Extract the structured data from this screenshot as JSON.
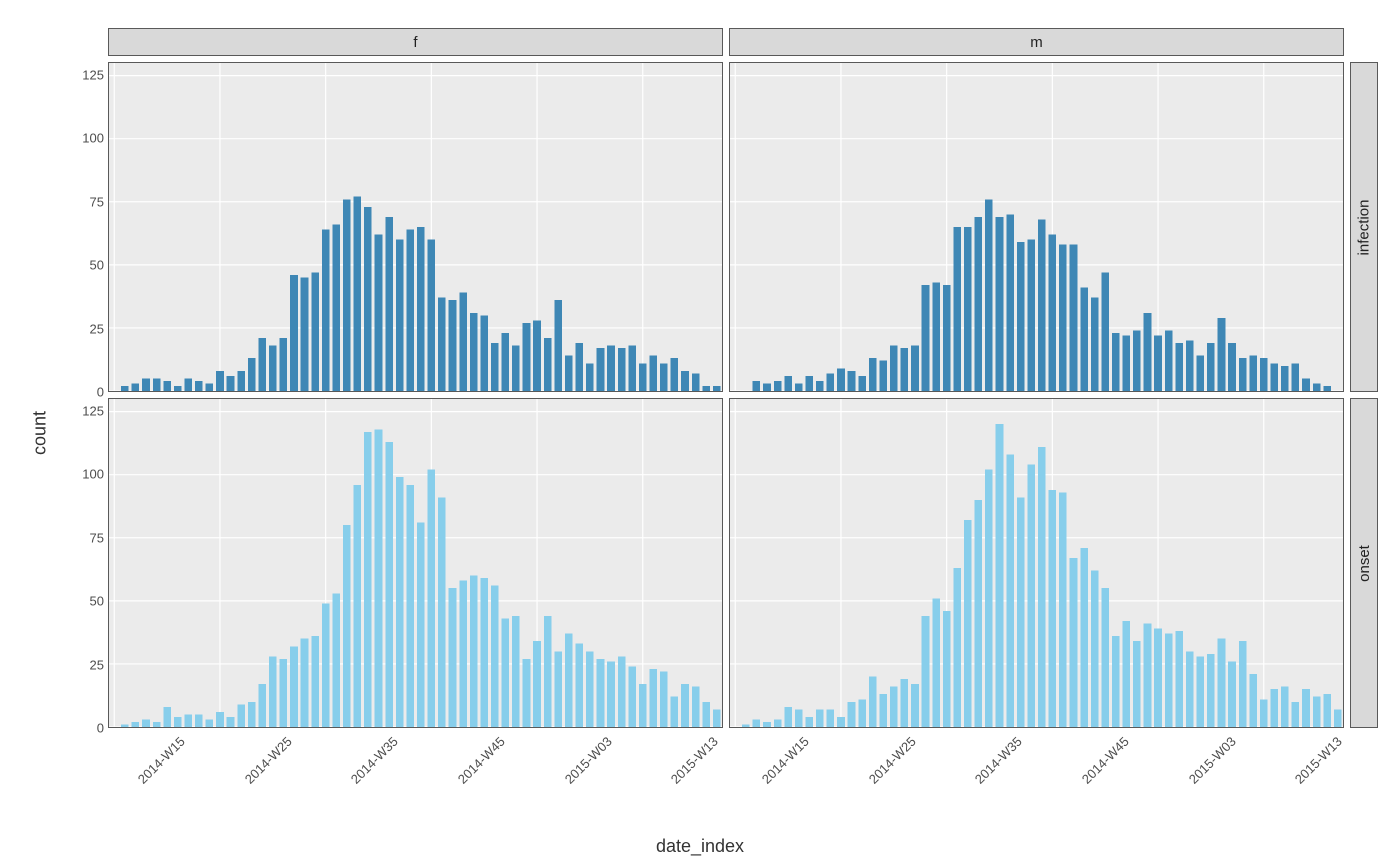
{
  "chart": {
    "type": "faceted-bar-histogram",
    "x_label": "date_index",
    "y_label": "count",
    "background_color": "#ffffff",
    "panel_background": "#ebebeb",
    "grid_color": "#ffffff",
    "strip_background": "#d9d9d9",
    "strip_border": "#595959",
    "axis_text_color": "#4d4d4d",
    "axis_title_color": "#333333",
    "font_family": "Arial, Helvetica, sans-serif",
    "axis_title_fontsize": 18,
    "axis_text_fontsize": 13,
    "strip_text_fontsize": 15,
    "ylim": [
      0,
      130
    ],
    "yticks": [
      0,
      25,
      50,
      75,
      100,
      125
    ],
    "x_categories": [
      "2014-W15",
      "2014-W16",
      "2014-W17",
      "2014-W18",
      "2014-W19",
      "2014-W20",
      "2014-W21",
      "2014-W22",
      "2014-W23",
      "2014-W24",
      "2014-W25",
      "2014-W26",
      "2014-W27",
      "2014-W28",
      "2014-W29",
      "2014-W30",
      "2014-W31",
      "2014-W32",
      "2014-W33",
      "2014-W34",
      "2014-W35",
      "2014-W36",
      "2014-W37",
      "2014-W38",
      "2014-W39",
      "2014-W40",
      "2014-W41",
      "2014-W42",
      "2014-W43",
      "2014-W44",
      "2014-W45",
      "2014-W46",
      "2014-W47",
      "2014-W48",
      "2014-W49",
      "2014-W50",
      "2014-W51",
      "2014-W52",
      "2015-W01",
      "2015-W02",
      "2015-W03",
      "2015-W04",
      "2015-W05",
      "2015-W06",
      "2015-W07",
      "2015-W08",
      "2015-W09",
      "2015-W10",
      "2015-W11",
      "2015-W12",
      "2015-W13",
      "2015-W14",
      "2015-W15",
      "2015-W16",
      "2015-W17",
      "2015-W18",
      "2015-W19",
      "2015-W20"
    ],
    "x_tick_labels": [
      "2014-W15",
      "2014-W25",
      "2014-W35",
      "2014-W45",
      "2015-W03",
      "2015-W13"
    ],
    "x_tick_positions": [
      0,
      10,
      20,
      30,
      40,
      50
    ],
    "bar_width_ratio": 0.72,
    "col_facets": [
      "f",
      "m"
    ],
    "row_facets": [
      "infection",
      "onset"
    ],
    "series_colors": {
      "infection": "#3e87b5",
      "onset": "#87ceeb"
    },
    "panels": {
      "f_infection": [
        0,
        2,
        3,
        5,
        5,
        4,
        2,
        5,
        4,
        3,
        8,
        6,
        8,
        13,
        21,
        18,
        21,
        46,
        45,
        47,
        64,
        66,
        76,
        77,
        73,
        62,
        69,
        60,
        64,
        65,
        60,
        37,
        36,
        39,
        31,
        30,
        19,
        23,
        18,
        27,
        28,
        21,
        36,
        14,
        19,
        11,
        17,
        18,
        17,
        18,
        11,
        14,
        11,
        13,
        8,
        7,
        2,
        2
      ],
      "m_infection": [
        0,
        0,
        4,
        3,
        4,
        6,
        3,
        6,
        4,
        7,
        9,
        8,
        6,
        13,
        12,
        18,
        17,
        18,
        42,
        43,
        42,
        65,
        65,
        69,
        76,
        69,
        70,
        59,
        60,
        68,
        62,
        58,
        58,
        41,
        37,
        47,
        23,
        22,
        24,
        31,
        22,
        24,
        19,
        20,
        14,
        19,
        29,
        19,
        13,
        14,
        13,
        11,
        10,
        11,
        5,
        3,
        2,
        0
      ],
      "f_onset": [
        0,
        1,
        2,
        3,
        2,
        8,
        4,
        5,
        5,
        3,
        6,
        4,
        9,
        10,
        17,
        28,
        27,
        32,
        35,
        36,
        49,
        53,
        80,
        96,
        117,
        118,
        113,
        99,
        96,
        81,
        102,
        91,
        55,
        58,
        60,
        59,
        56,
        43,
        44,
        27,
        34,
        44,
        30,
        37,
        33,
        30,
        27,
        26,
        28,
        24,
        17,
        23,
        22,
        12,
        17,
        16,
        10,
        7
      ],
      "m_onset": [
        0,
        1,
        3,
        2,
        3,
        8,
        7,
        4,
        7,
        7,
        4,
        10,
        11,
        20,
        13,
        16,
        19,
        17,
        44,
        51,
        46,
        63,
        82,
        90,
        102,
        120,
        108,
        91,
        104,
        111,
        94,
        93,
        67,
        71,
        62,
        55,
        36,
        42,
        34,
        41,
        39,
        37,
        38,
        30,
        28,
        29,
        35,
        26,
        34,
        21,
        11,
        15,
        16,
        10,
        15,
        12,
        13,
        7
      ]
    }
  }
}
